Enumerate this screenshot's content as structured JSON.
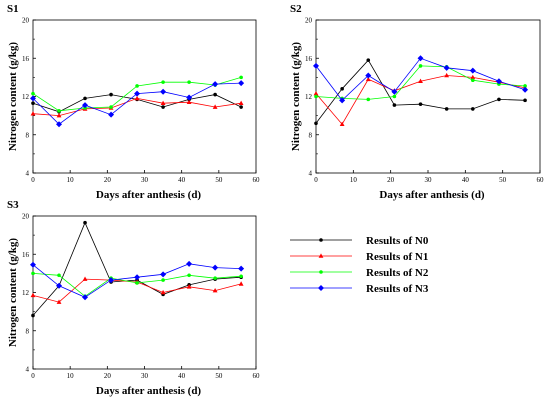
{
  "chart_data": [
    {
      "type": "line",
      "panel": "S1",
      "xlabel": "Days after anthesis (d)",
      "ylabel": "Nitrogen content (g/kg)",
      "xlim": [
        0,
        60
      ],
      "ylim": [
        4,
        20
      ],
      "xticks": [
        "0",
        "10",
        "20",
        "30",
        "40",
        "50",
        "60"
      ],
      "yticks": [
        "4",
        "8",
        "12",
        "16",
        "20"
      ],
      "x": [
        0,
        7,
        14,
        21,
        28,
        35,
        42,
        49,
        56
      ],
      "series": [
        {
          "name": "Results of N0",
          "values": [
            11.3,
            10.4,
            11.8,
            12.2,
            11.7,
            10.9,
            11.7,
            12.2,
            10.9
          ]
        },
        {
          "name": "Results of N1",
          "values": [
            10.2,
            10.0,
            10.7,
            10.8,
            11.8,
            11.3,
            11.4,
            10.9,
            11.3
          ]
        },
        {
          "name": "Results of N2",
          "values": [
            12.3,
            10.5,
            10.8,
            10.9,
            13.1,
            13.5,
            13.5,
            13.2,
            14.0
          ]
        },
        {
          "name": "Results of N3",
          "values": [
            11.8,
            9.1,
            11.1,
            10.1,
            12.3,
            12.5,
            11.9,
            13.3,
            13.4
          ]
        }
      ]
    },
    {
      "type": "line",
      "panel": "S2",
      "xlabel": "Days after anthesis (d)",
      "ylabel": "Nitrogen content (g/kg)",
      "xlim": [
        0,
        60
      ],
      "ylim": [
        4,
        20
      ],
      "xticks": [
        "0",
        "10",
        "20",
        "30",
        "40",
        "50",
        "60"
      ],
      "yticks": [
        "4",
        "8",
        "12",
        "16",
        "20"
      ],
      "x": [
        0,
        7,
        14,
        21,
        28,
        35,
        42,
        49,
        56
      ],
      "series": [
        {
          "name": "Results of N0",
          "values": [
            9.2,
            12.8,
            15.8,
            11.1,
            11.2,
            10.7,
            10.7,
            11.7,
            11.6
          ]
        },
        {
          "name": "Results of N1",
          "values": [
            12.3,
            9.1,
            13.8,
            12.6,
            13.6,
            14.2,
            14.0,
            13.5,
            12.9
          ]
        },
        {
          "name": "Results of N2",
          "values": [
            12.0,
            11.8,
            11.7,
            12.0,
            15.2,
            15.1,
            13.7,
            13.3,
            13.1
          ]
        },
        {
          "name": "Results of N3",
          "values": [
            15.2,
            11.6,
            14.2,
            12.5,
            16.0,
            15.0,
            14.7,
            13.6,
            12.7
          ]
        }
      ]
    },
    {
      "type": "line",
      "panel": "S3",
      "xlabel": "Days after anthesis (d)",
      "ylabel": "Nitrogen content (g/kg)",
      "xlim": [
        0,
        60
      ],
      "ylim": [
        4,
        20
      ],
      "xticks": [
        "0",
        "10",
        "20",
        "30",
        "40",
        "50",
        "60"
      ],
      "yticks": [
        "4",
        "8",
        "12",
        "16",
        "20"
      ],
      "x": [
        0,
        7,
        14,
        21,
        28,
        35,
        42,
        49,
        56
      ],
      "series": [
        {
          "name": "Results of N0",
          "values": [
            9.6,
            12.7,
            19.3,
            13.1,
            13.3,
            11.8,
            12.8,
            13.4,
            13.6
          ]
        },
        {
          "name": "Results of N1",
          "values": [
            11.7,
            11.0,
            13.4,
            13.3,
            13.1,
            12.0,
            12.6,
            12.2,
            12.9
          ]
        },
        {
          "name": "Results of N2",
          "values": [
            14.0,
            13.8,
            11.6,
            13.5,
            13.0,
            13.3,
            13.8,
            13.5,
            13.7
          ]
        },
        {
          "name": "Results of N3",
          "values": [
            14.9,
            12.7,
            11.5,
            13.3,
            13.6,
            13.9,
            15.0,
            14.6,
            14.5
          ]
        }
      ]
    }
  ],
  "series_styles": [
    {
      "color": "#000000",
      "marker": "circle"
    },
    {
      "color": "#ff0000",
      "marker": "triangle"
    },
    {
      "color": "#00ff00",
      "marker": "circle"
    },
    {
      "color": "#0000ff",
      "marker": "diamond"
    }
  ]
}
